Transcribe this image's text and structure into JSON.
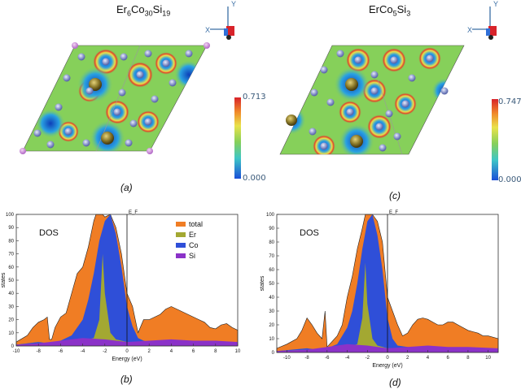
{
  "panels": {
    "a": {
      "title_main": "Er",
      "title_sub1": "6",
      "title_mid1": "Co",
      "title_sub2": "30",
      "title_mid2": "Si",
      "title_sub3": "19",
      "caption": "(a)",
      "colorbar_max": "0.713",
      "colorbar_min": "0.000"
    },
    "c": {
      "title_main": "ErCo",
      "title_sub1": "5",
      "title_mid1": "Si",
      "title_sub2": "3",
      "caption": "(c)",
      "colorbar_max": "0.747",
      "colorbar_min": "0.000"
    },
    "b": {
      "caption": "(b)"
    },
    "d": {
      "caption": "(d)"
    }
  },
  "axes_gizmo": {
    "x": "X",
    "y": "Y"
  },
  "colors": {
    "total": "#f07d24",
    "Er": "#a3a832",
    "Co": "#2f4fd8",
    "Si": "#8b32c8",
    "map_bg": "#86d05a",
    "atom": "#8a96c8"
  },
  "chart_data": [
    {
      "id": "b",
      "type": "area",
      "ylabel": "states",
      "xlabel": "Energy (eV)",
      "annotation": "DOS",
      "fermi_label": "E_F",
      "xlim": [
        -10,
        10
      ],
      "ylim": [
        0,
        100
      ],
      "xticks": [
        "-10",
        "-8",
        "-6",
        "-4",
        "-2",
        "0",
        "2",
        "4",
        "6",
        "8",
        "10"
      ],
      "yticks": [
        "0",
        "10",
        "20",
        "30",
        "40",
        "50",
        "60",
        "70",
        "80",
        "90",
        "100"
      ],
      "legend": [
        "total",
        "Er",
        "Co",
        "Si"
      ],
      "series": [
        {
          "name": "total",
          "x": [
            -10,
            -9,
            -8.5,
            -8,
            -7.5,
            -7.2,
            -7.0,
            -6.8,
            -6.5,
            -6,
            -5.5,
            -5,
            -4.5,
            -4,
            -3.5,
            -3,
            -2.8,
            -2.5,
            -2.2,
            -2,
            -1.5,
            -1,
            -0.5,
            0,
            0.5,
            1,
            1.5,
            2,
            2.5,
            3,
            3.5,
            4,
            4.5,
            5,
            5.5,
            6,
            6.5,
            7,
            7.5,
            8,
            8.5,
            9,
            9.5,
            10
          ],
          "y": [
            3,
            8,
            14,
            18,
            20,
            22,
            5,
            5,
            14,
            22,
            25,
            40,
            55,
            60,
            75,
            95,
            100,
            100,
            100,
            98,
            100,
            90,
            70,
            40,
            30,
            10,
            20,
            20,
            22,
            24,
            28,
            30,
            28,
            26,
            24,
            22,
            20,
            18,
            14,
            13,
            16,
            17,
            14,
            12
          ]
        },
        {
          "name": "Co",
          "x": [
            -10,
            -8,
            -7,
            -6,
            -5,
            -4,
            -3.5,
            -3,
            -2.5,
            -2,
            -1.5,
            -1,
            -0.5,
            0,
            0.5,
            1,
            1.5,
            2,
            3,
            4,
            5,
            6,
            7,
            8,
            9,
            10
          ],
          "y": [
            1,
            3,
            2,
            4,
            8,
            20,
            35,
            55,
            80,
            95,
            100,
            85,
            60,
            30,
            15,
            6,
            4,
            3,
            3,
            3,
            3,
            3,
            3,
            2,
            2,
            2
          ]
        },
        {
          "name": "Er",
          "x": [
            -10,
            -8,
            -6,
            -4,
            -3,
            -2.5,
            -2.2,
            -2,
            -1.5,
            -1,
            0,
            2,
            4,
            6,
            8,
            10
          ],
          "y": [
            1,
            2,
            3,
            4,
            6,
            20,
            70,
            40,
            10,
            5,
            3,
            3,
            3,
            3,
            2,
            2
          ]
        },
        {
          "name": "Si",
          "x": [
            -10,
            -8,
            -6,
            -4,
            -2,
            0,
            2,
            4,
            6,
            8,
            10
          ],
          "y": [
            1,
            2,
            4,
            6,
            5,
            3,
            4,
            5,
            4,
            4,
            3
          ]
        }
      ]
    },
    {
      "id": "d",
      "type": "area",
      "ylabel": "states",
      "xlabel": "Energy (eV)",
      "annotation": "DOS",
      "fermi_label": "E_F",
      "xlim": [
        -11,
        11
      ],
      "ylim": [
        0,
        100
      ],
      "xticks": [
        "-10",
        "-8",
        "-6",
        "-4",
        "-2",
        "0",
        "2",
        "4",
        "6",
        "8",
        "10"
      ],
      "yticks": [
        "0",
        "10",
        "20",
        "30",
        "40",
        "50",
        "60",
        "70",
        "80",
        "90",
        "100"
      ],
      "series": [
        {
          "name": "total",
          "x": [
            -11,
            -10,
            -9,
            -8.5,
            -8,
            -7.5,
            -7,
            -6.5,
            -6.2,
            -6,
            -5.5,
            -5,
            -4.5,
            -4,
            -3.5,
            -3,
            -2.5,
            -2.2,
            -2,
            -1.5,
            -1,
            -0.5,
            0,
            0.5,
            1,
            1.5,
            2,
            2.5,
            3,
            3.5,
            4,
            4.5,
            5,
            5.5,
            6,
            6.5,
            7,
            7.5,
            8,
            8.5,
            9,
            9.5,
            10,
            11
          ],
          "y": [
            3,
            6,
            10,
            16,
            25,
            20,
            14,
            10,
            30,
            4,
            8,
            12,
            20,
            40,
            55,
            75,
            90,
            100,
            100,
            100,
            95,
            80,
            40,
            30,
            20,
            12,
            14,
            20,
            24,
            25,
            24,
            22,
            20,
            20,
            22,
            22,
            20,
            18,
            16,
            15,
            14,
            12,
            12,
            10
          ]
        },
        {
          "name": "Co",
          "x": [
            -11,
            -8,
            -7,
            -6,
            -5,
            -4,
            -3.5,
            -3,
            -2.5,
            -2,
            -1.5,
            -1,
            -0.5,
            0,
            0.5,
            1,
            2,
            3,
            4,
            5,
            6,
            7,
            8,
            9,
            10,
            11
          ],
          "y": [
            1,
            3,
            2,
            3,
            6,
            18,
            30,
            50,
            75,
            95,
            100,
            85,
            60,
            25,
            10,
            5,
            4,
            3,
            3,
            3,
            3,
            3,
            3,
            2,
            2,
            2
          ]
        },
        {
          "name": "Er",
          "x": [
            -11,
            -8,
            -6,
            -4,
            -3,
            -2.5,
            -2.2,
            -2,
            -1.5,
            -1,
            0,
            2,
            4,
            6,
            8,
            11
          ],
          "y": [
            1,
            2,
            3,
            4,
            6,
            25,
            65,
            35,
            10,
            5,
            3,
            3,
            3,
            3,
            2,
            2
          ]
        },
        {
          "name": "Si",
          "x": [
            -11,
            -8,
            -6,
            -4,
            -2,
            0,
            2,
            4,
            6,
            8,
            11
          ],
          "y": [
            1,
            2,
            4,
            6,
            5,
            3,
            4,
            5,
            4,
            4,
            3
          ]
        }
      ]
    }
  ]
}
